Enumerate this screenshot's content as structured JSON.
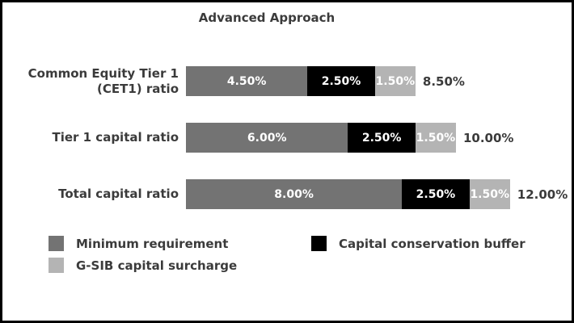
{
  "chart_data": {
    "type": "bar",
    "orientation": "horizontal",
    "stacked": true,
    "title": "Advanced Approach",
    "categories": [
      "Common Equity Tier 1 (CET1) ratio",
      "Tier 1 capital ratio",
      "Total capital ratio"
    ],
    "series": [
      {
        "name": "Minimum requirement",
        "color": "#737373",
        "values": [
          4.5,
          6.0,
          8.0
        ]
      },
      {
        "name": "Capital conservation buffer",
        "color": "#000000",
        "values": [
          2.5,
          2.5,
          2.5
        ]
      },
      {
        "name": "G-SIB capital surcharge",
        "color": "#b4b4b4",
        "values": [
          1.5,
          1.5,
          1.5
        ]
      }
    ],
    "segment_labels": [
      [
        "4.50%",
        "2.50%",
        "1.50%"
      ],
      [
        "6.00%",
        "2.50%",
        "1.50%"
      ],
      [
        "8.00%",
        "2.50%",
        "1.50%"
      ]
    ],
    "totals": [
      "8.50%",
      "10.00%",
      "12.00%"
    ],
    "value_format": "percent",
    "xlim": [
      0,
      12
    ],
    "grid": false,
    "legend_position": "bottom"
  },
  "colors": {
    "text": "#3b3b3b",
    "segment_text": "#ffffff",
    "frame_border": "#000000",
    "background": "#ffffff"
  }
}
